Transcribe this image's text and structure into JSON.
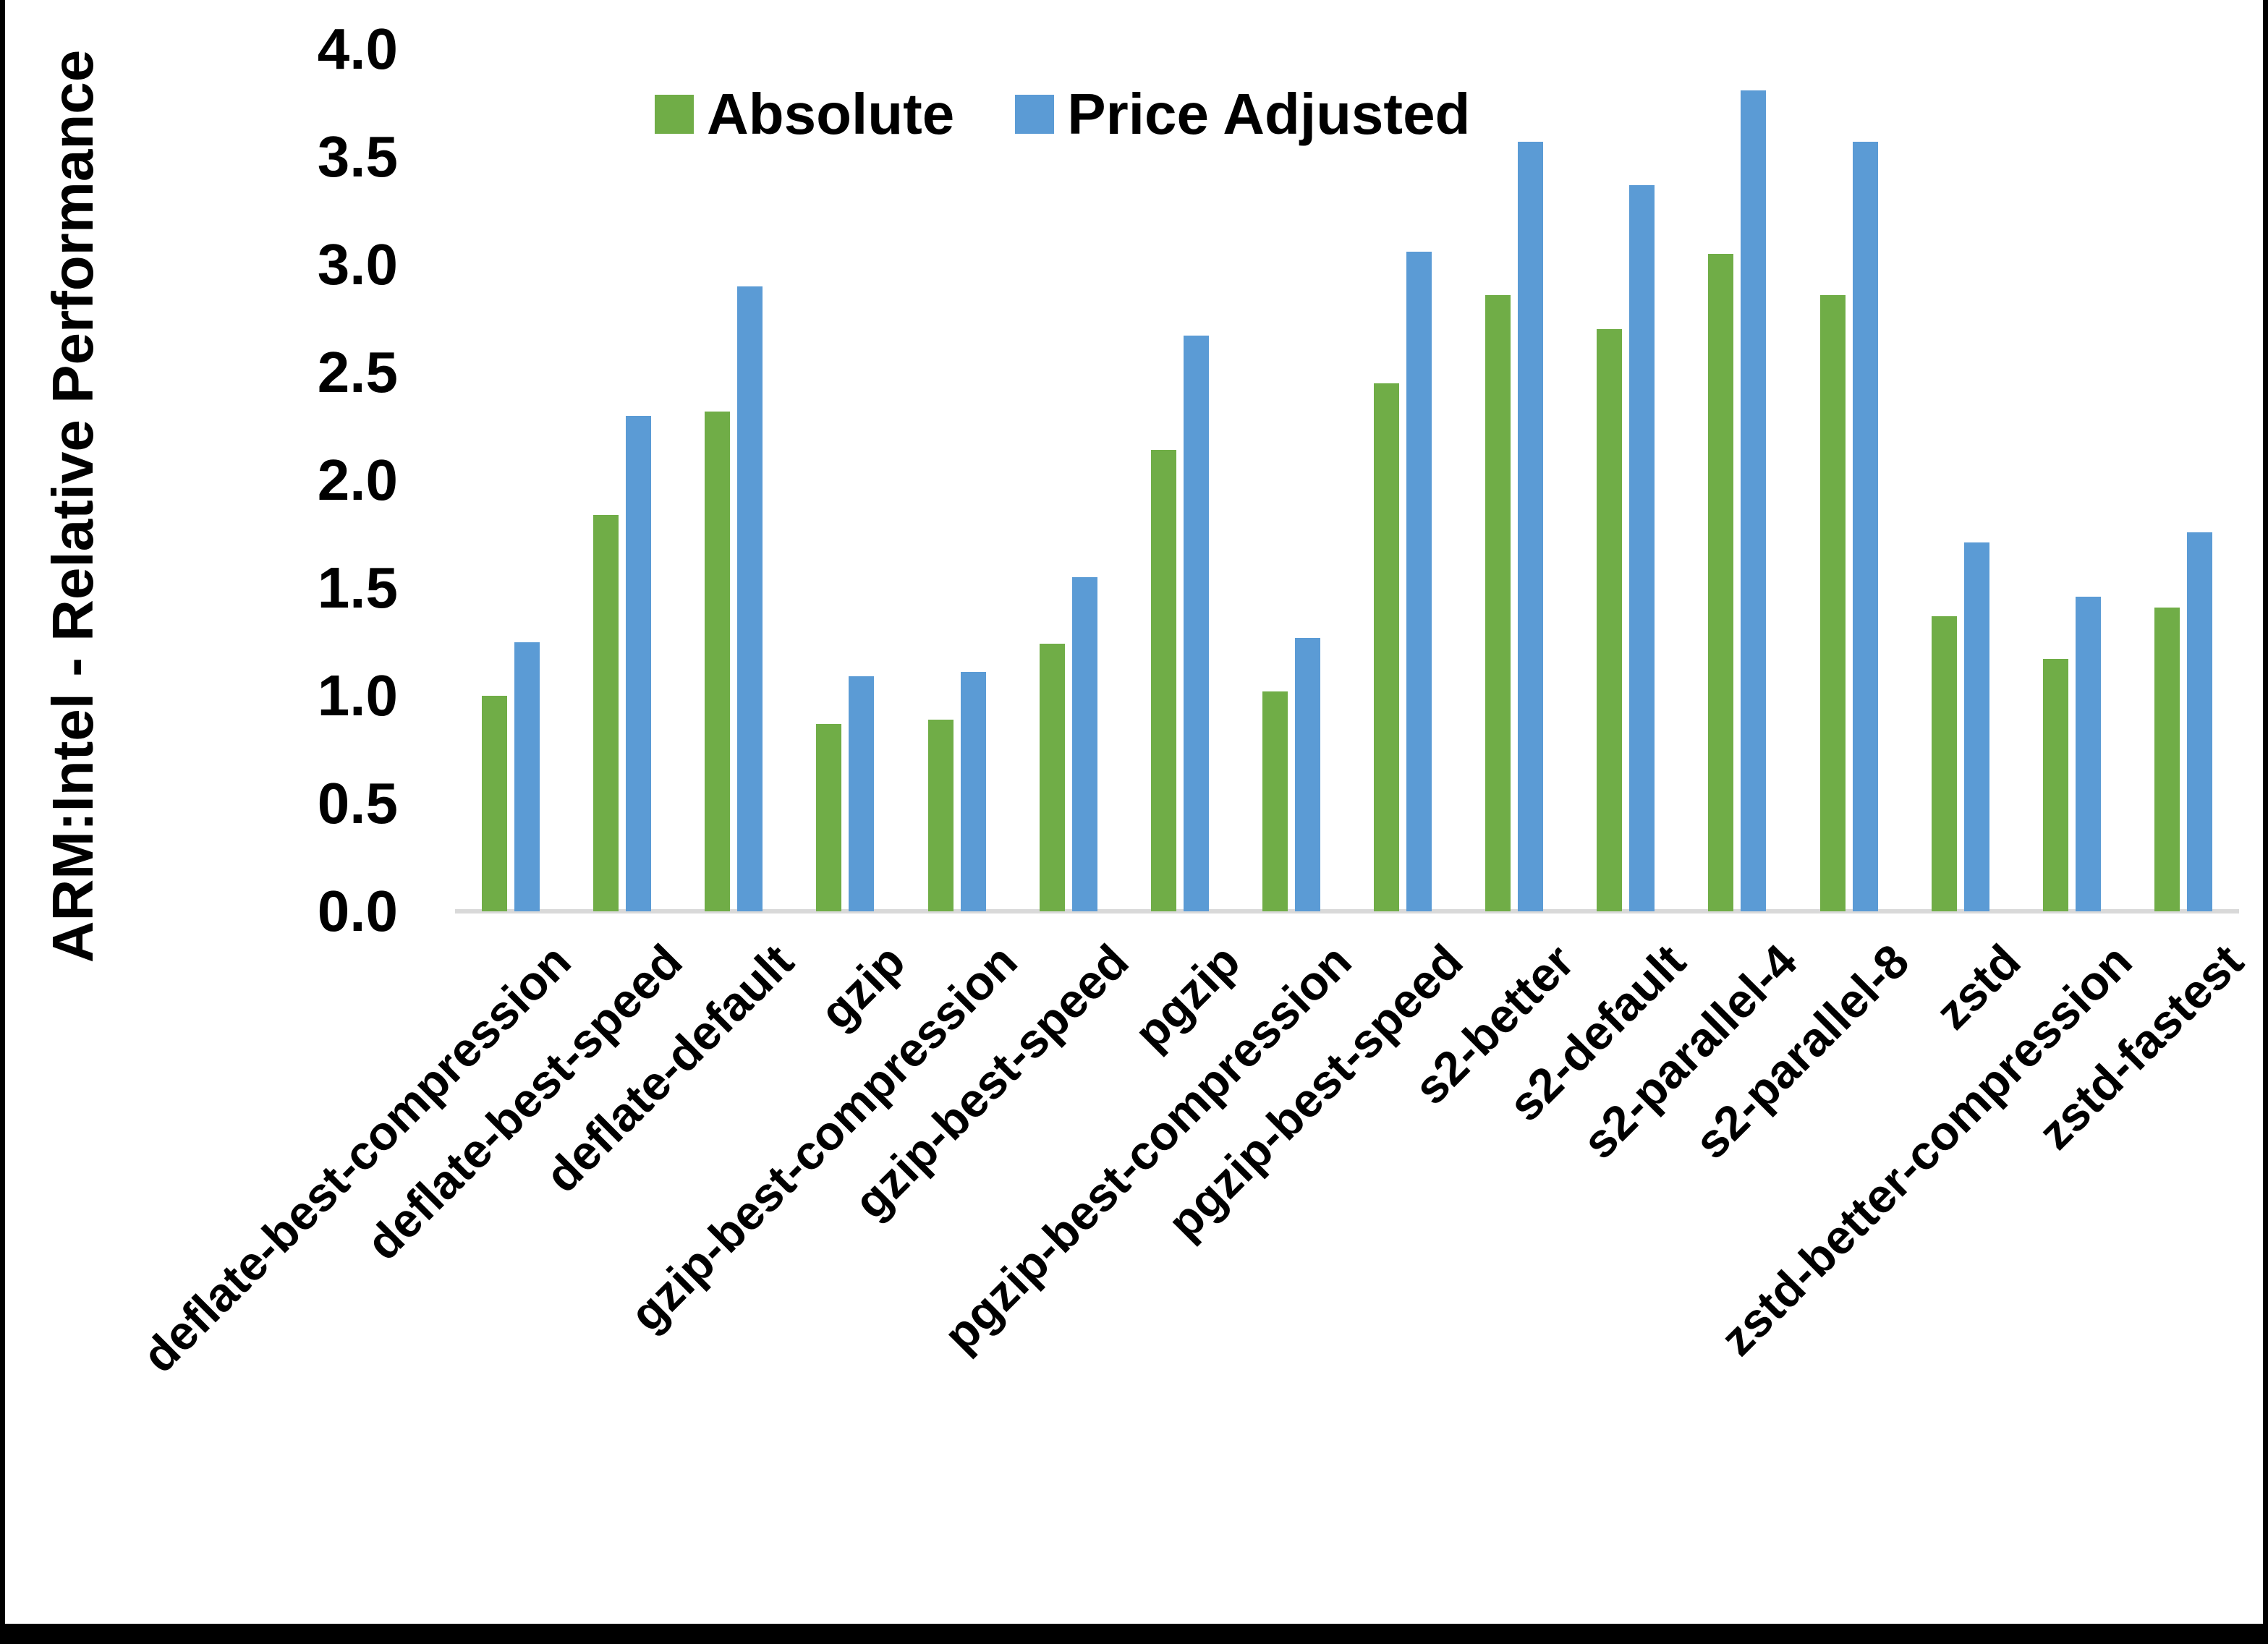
{
  "colors": {
    "background": "#FFFFFF",
    "border": "#000000",
    "axis_line": "#D9D9D9",
    "text": "#000000",
    "absolute_green": "#70AD47",
    "price_adjusted_blue": "#5B9BD5"
  },
  "legend": {
    "items": [
      {
        "label": "Absolute",
        "color": "#70AD47"
      },
      {
        "label": "Price Adjusted",
        "color": "#5B9BD5"
      }
    ]
  },
  "chart_data": {
    "type": "bar",
    "title": "",
    "xlabel": "",
    "ylabel": "ARM:Intel - Relative Performance",
    "ylim": [
      0,
      4
    ],
    "ytick_step": 0.5,
    "yticks": [
      "4.0",
      "3.5",
      "3.0",
      "2.5",
      "2.0",
      "1.5",
      "1.0",
      "0.5",
      "0.0"
    ],
    "grid": false,
    "legend_position": "top-center",
    "x_label_rotation_deg": 45,
    "categories": [
      "deflate-best-compression",
      "deflate-best-speed",
      "deflate-default",
      "gzip",
      "gzip-best-compression",
      "gzip-best-speed",
      "pgzip",
      "pgzip-best-compression",
      "pgzip-best-speed",
      "s2-better",
      "s2-default",
      "s2-parallel-4",
      "s2-parallel-8",
      "zstd",
      "zstd-better-compression",
      "zstd-fastest"
    ],
    "series": [
      {
        "name": "Absolute",
        "color": "#70AD47",
        "values": [
          1.0,
          1.84,
          2.32,
          0.87,
          0.89,
          1.24,
          2.14,
          1.02,
          2.45,
          2.86,
          2.7,
          3.05,
          2.86,
          1.37,
          1.17,
          1.41
        ]
      },
      {
        "name": "Price Adjusted",
        "color": "#5B9BD5",
        "values": [
          1.25,
          2.3,
          2.9,
          1.09,
          1.11,
          1.55,
          2.67,
          1.27,
          3.06,
          3.57,
          3.37,
          3.81,
          3.57,
          1.71,
          1.46,
          1.76
        ]
      }
    ]
  }
}
